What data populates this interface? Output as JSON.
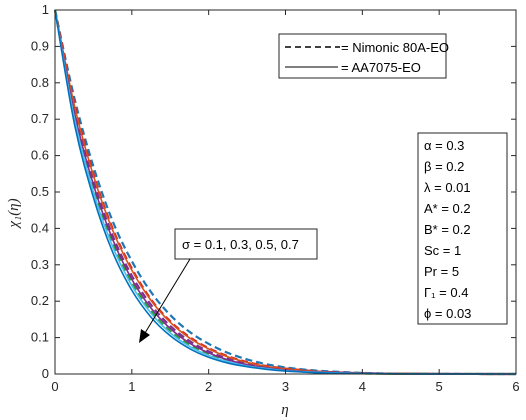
{
  "chart_data": {
    "type": "line",
    "xlabel": "η",
    "ylabel": "χ₁(η)",
    "xlim": [
      0,
      6
    ],
    "ylim": [
      0,
      1
    ],
    "xticks": [
      "0",
      "1",
      "2",
      "3",
      "4",
      "5",
      "6"
    ],
    "yticks": [
      "0",
      "0.1",
      "0.2",
      "0.3",
      "0.4",
      "0.5",
      "0.6",
      "0.7",
      "0.8",
      "0.9",
      "1"
    ],
    "x": [
      0,
      0.25,
      0.5,
      0.75,
      1,
      1.25,
      1.5,
      1.75,
      2,
      2.25,
      2.5,
      2.75,
      3,
      3.25,
      3.5,
      4,
      4.5,
      5,
      5.5,
      6
    ],
    "series": [
      {
        "style": "dashed",
        "color": "#1f77b4",
        "values": [
          1,
          0.76,
          0.57,
          0.42,
          0.31,
          0.225,
          0.162,
          0.116,
          0.083,
          0.058,
          0.04,
          0.027,
          0.018,
          0.012,
          0.008,
          0.003,
          0.001,
          0.0004,
          0.0001,
          0
        ]
      },
      {
        "style": "dashed",
        "color": "#d62728",
        "values": [
          1,
          0.745,
          0.55,
          0.4,
          0.29,
          0.205,
          0.145,
          0.102,
          0.071,
          0.049,
          0.033,
          0.022,
          0.015,
          0.01,
          0.006,
          0.002,
          0.001,
          0.0003,
          0.0001,
          0
        ]
      },
      {
        "style": "dashed",
        "color": "#7e2f8e",
        "values": [
          1,
          0.73,
          0.53,
          0.38,
          0.27,
          0.19,
          0.132,
          0.091,
          0.062,
          0.042,
          0.028,
          0.019,
          0.012,
          0.008,
          0.005,
          0.002,
          0.0006,
          0.0002,
          0.0001,
          0
        ]
      },
      {
        "style": "dashed",
        "color": "#2ca02c",
        "values": [
          1,
          0.715,
          0.51,
          0.36,
          0.25,
          0.173,
          0.118,
          0.08,
          0.054,
          0.036,
          0.024,
          0.016,
          0.01,
          0.007,
          0.004,
          0.0015,
          0.0005,
          0.0002,
          0.0001,
          0
        ]
      },
      {
        "style": "solid",
        "color": "#d95319",
        "values": [
          1,
          0.74,
          0.545,
          0.395,
          0.285,
          0.202,
          0.142,
          0.099,
          0.069,
          0.047,
          0.032,
          0.021,
          0.014,
          0.009,
          0.006,
          0.002,
          0.0008,
          0.0003,
          0.0001,
          0
        ]
      },
      {
        "style": "solid",
        "color": "#7e2f8e",
        "values": [
          1,
          0.72,
          0.52,
          0.37,
          0.26,
          0.181,
          0.125,
          0.085,
          0.058,
          0.039,
          0.026,
          0.017,
          0.011,
          0.007,
          0.005,
          0.0018,
          0.0006,
          0.0002,
          0.0001,
          0
        ]
      },
      {
        "style": "solid",
        "color": "#4dbeee",
        "values": [
          1,
          0.705,
          0.5,
          0.35,
          0.243,
          0.167,
          0.113,
          0.076,
          0.051,
          0.034,
          0.022,
          0.015,
          0.009,
          0.006,
          0.004,
          0.0014,
          0.0005,
          0.0002,
          0.0001,
          0
        ]
      },
      {
        "style": "solid",
        "color": "#0072bd",
        "values": [
          1,
          0.69,
          0.485,
          0.335,
          0.23,
          0.156,
          0.105,
          0.07,
          0.046,
          0.03,
          0.02,
          0.013,
          0.008,
          0.005,
          0.003,
          0.0012,
          0.0004,
          0.0001,
          0.0001,
          0
        ]
      }
    ],
    "legend": {
      "position": "top-right",
      "entries": [
        {
          "style": "dashed",
          "label": "= Nimonic 80A-EO"
        },
        {
          "style": "solid",
          "label": "= AA7075-EO"
        }
      ]
    },
    "parameters": {
      "alpha": "α = 0.3",
      "beta": "β = 0.2",
      "lambda": "λ = 0.01",
      "a_star": "A* = 0.2",
      "b_star": "B* = 0.2",
      "sc": "Sc = 1",
      "pr": "Pr = 5",
      "gamma1": "Γ₁ = 0.4",
      "phi": "ϕ = 0.03"
    },
    "annotation": "σ = 0.1, 0.3, 0.5, 0.7"
  }
}
